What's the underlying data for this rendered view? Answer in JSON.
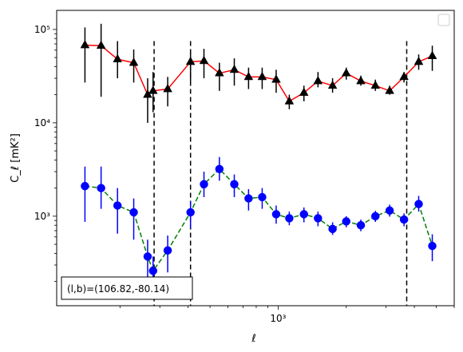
{
  "chart_data": {
    "type": "line",
    "xlabel": "ℓ",
    "ylabel": "C_ℓ [mK²]",
    "xscale": "log",
    "yscale": "log",
    "xlim": [
      105,
      6000
    ],
    "ylim": [
      110,
      160000
    ],
    "grid": false,
    "legend": "upper right (empty box)",
    "x_tick_labels": [
      {
        "value": 1000,
        "label": "10³"
      }
    ],
    "y_tick_labels": [
      {
        "value": 1000,
        "label": "10³"
      },
      {
        "value": 10000,
        "label": "10⁴"
      },
      {
        "value": 100000,
        "label": "10⁵"
      }
    ],
    "vlines": [
      283,
      410,
      3700
    ],
    "annotation": "(l,b)=(106.82,-80.14)",
    "x": [
      140,
      165,
      195,
      230,
      265,
      280,
      325,
      410,
      470,
      550,
      640,
      740,
      850,
      980,
      1120,
      1300,
      1500,
      1740,
      2000,
      2320,
      2690,
      3110,
      3600,
      4180,
      4800
    ],
    "series": [
      {
        "marker": "triangle",
        "color": "#000000",
        "line_color": "#ff0000",
        "line_style": "solid",
        "values": [
          68000,
          67000,
          48000,
          44000,
          20000,
          22000,
          23000,
          45000,
          46000,
          34000,
          37000,
          31000,
          31000,
          29000,
          17000,
          21000,
          28000,
          25000,
          34000,
          28000,
          25000,
          22000,
          31000,
          45000,
          52000
        ],
        "err_low": [
          27000,
          19000,
          30000,
          27000,
          10000,
          13000,
          15000,
          28000,
          30000,
          22000,
          25000,
          23000,
          23000,
          21000,
          14000,
          17000,
          24000,
          21000,
          29000,
          25000,
          22000,
          20000,
          27000,
          37000,
          36000
        ],
        "err_high": [
          105000,
          115000,
          75000,
          61000,
          30000,
          35000,
          31000,
          57000,
          62000,
          44000,
          49000,
          39000,
          39000,
          37000,
          20000,
          25000,
          35000,
          30000,
          39000,
          32000,
          29000,
          25000,
          35000,
          54000,
          67000
        ]
      },
      {
        "marker": "circle",
        "color": "#0000ff",
        "line_color": "#008000",
        "line_style": "dashed",
        "values": [
          2100,
          2000,
          1300,
          1100,
          370,
          260,
          430,
          1100,
          2200,
          3200,
          2200,
          1550,
          1600,
          1050,
          950,
          1050,
          950,
          730,
          880,
          800,
          1000,
          1150,
          920,
          1350,
          480
        ],
        "err_low": [
          870,
          1200,
          650,
          560,
          200,
          150,
          250,
          740,
          1600,
          2400,
          1600,
          1150,
          1200,
          830,
          800,
          860,
          780,
          630,
          760,
          690,
          870,
          990,
          780,
          1120,
          330
        ],
        "err_high": [
          3400,
          3400,
          2000,
          1550,
          560,
          370,
          620,
          1450,
          3000,
          4300,
          2800,
          1950,
          2000,
          1300,
          1120,
          1240,
          1120,
          860,
          1000,
          920,
          1140,
          1330,
          1070,
          1650,
          640
        ]
      }
    ]
  }
}
